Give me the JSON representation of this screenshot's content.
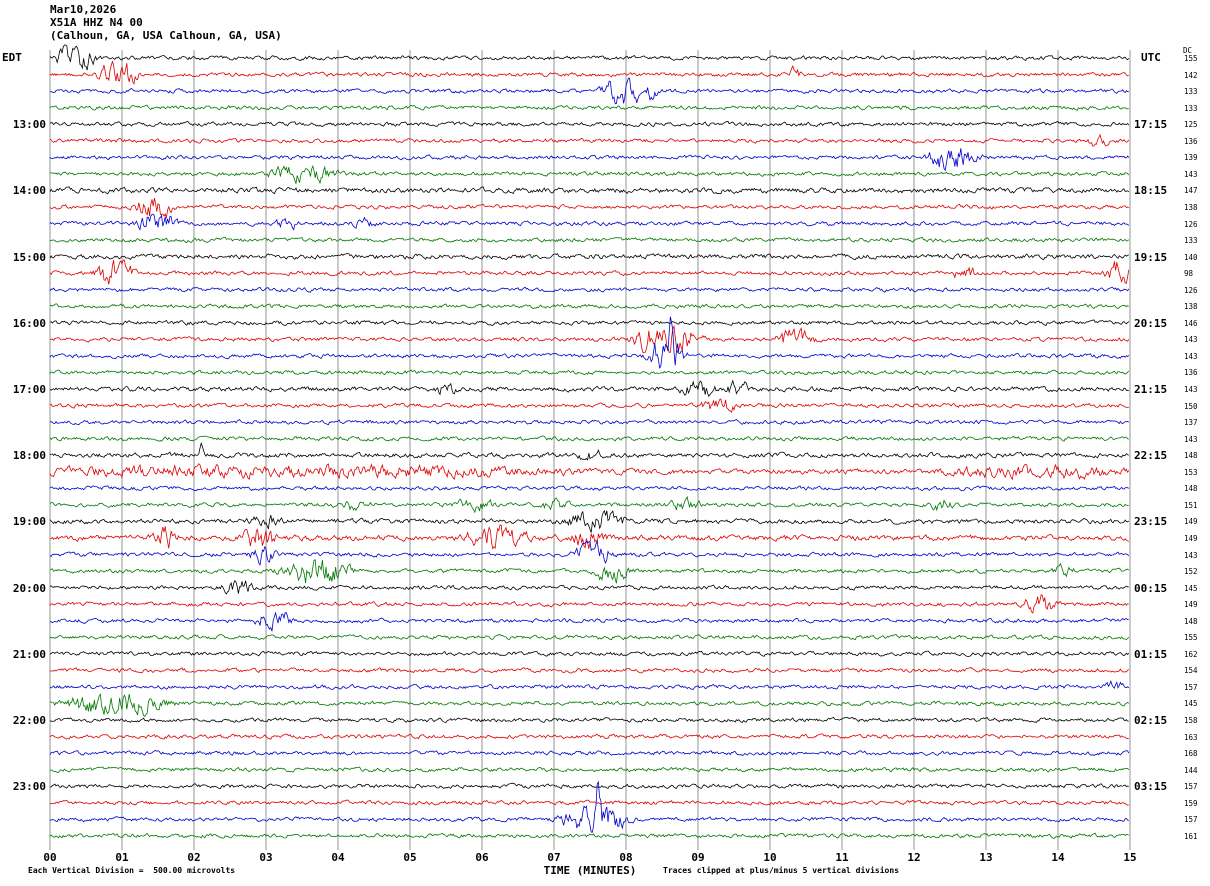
{
  "header": {
    "date": "Mar10,2026",
    "station": "X51A HHZ N4 00",
    "location": "(Calhoun, GA, USA Calhoun, GA, USA)",
    "left_tz": "EDT",
    "right_tz": "UTC",
    "dc_label": "DC"
  },
  "footer": {
    "scale": "Each Vertical Division =  500.00 microvolts",
    "clip_note": "Traces clipped at plus/minus 5 vertical divisions"
  },
  "chart_data": {
    "type": "line",
    "subtype": "seismogram-helicorder",
    "xlabel": "TIME (MINUTES)",
    "x_range": [
      0,
      15
    ],
    "minutes_per_line": 15,
    "lines": 48,
    "x_ticks": [
      "00",
      "01",
      "02",
      "03",
      "04",
      "05",
      "06",
      "07",
      "08",
      "09",
      "10",
      "11",
      "12",
      "13",
      "14",
      "15"
    ],
    "trace_colors_cycle": [
      "#000000",
      "#dd0000",
      "#0000cc",
      "#007700"
    ],
    "grid_color": "#666666",
    "left_labels": [
      {
        "row": 4,
        "label": "13:00"
      },
      {
        "row": 8,
        "label": "14:00"
      },
      {
        "row": 12,
        "label": "15:00"
      },
      {
        "row": 16,
        "label": "16:00"
      },
      {
        "row": 20,
        "label": "17:00"
      },
      {
        "row": 24,
        "label": "18:00"
      },
      {
        "row": 28,
        "label": "19:00"
      },
      {
        "row": 32,
        "label": "20:00"
      },
      {
        "row": 36,
        "label": "21:00"
      },
      {
        "row": 40,
        "label": "22:00"
      },
      {
        "row": 44,
        "label": "23:00"
      }
    ],
    "right_labels": [
      {
        "row": 4,
        "label": "17:15"
      },
      {
        "row": 8,
        "label": "18:15"
      },
      {
        "row": 12,
        "label": "19:15"
      },
      {
        "row": 16,
        "label": "20:15"
      },
      {
        "row": 20,
        "label": "21:15"
      },
      {
        "row": 24,
        "label": "22:15"
      },
      {
        "row": 28,
        "label": "23:15"
      },
      {
        "row": 32,
        "label": "00:15"
      },
      {
        "row": 36,
        "label": "01:15"
      },
      {
        "row": 40,
        "label": "02:15"
      },
      {
        "row": 44,
        "label": "03:15"
      }
    ],
    "dc_values": [
      155,
      142,
      133,
      133,
      125,
      136,
      139,
      143,
      147,
      138,
      126,
      133,
      140,
      98,
      126,
      138,
      146,
      143,
      143,
      136,
      143,
      150,
      137,
      143,
      148,
      153,
      148,
      151,
      149,
      149,
      143,
      152,
      145,
      149,
      148,
      155,
      162,
      154,
      157,
      145,
      158,
      163,
      168,
      144,
      157,
      159,
      157,
      161
    ],
    "noise_default": 1.5,
    "noise_overrides": {
      "8": 2.0,
      "12": 1.8,
      "20": 1.8,
      "24": 1.8,
      "25": 1.9,
      "28": 1.8,
      "29": 2.1
    },
    "events": [
      {
        "row": 0,
        "t": 0.35,
        "amp": 9,
        "dur": 0.5
      },
      {
        "row": 1,
        "t": 0.95,
        "amp": 8,
        "dur": 0.55
      },
      {
        "row": 1,
        "t": 10.35,
        "amp": 4,
        "dur": 0.15
      },
      {
        "row": 2,
        "t": 8.05,
        "amp": 9,
        "dur": 0.7
      },
      {
        "row": 5,
        "t": 14.55,
        "amp": 3,
        "dur": 0.3
      },
      {
        "row": 6,
        "t": 12.55,
        "amp": 9,
        "dur": 0.65
      },
      {
        "row": 7,
        "t": 3.5,
        "amp": 5,
        "dur": 0.9
      },
      {
        "row": 9,
        "t": 1.45,
        "amp": 8,
        "dur": 0.5
      },
      {
        "row": 10,
        "t": 1.5,
        "amp": 7,
        "dur": 0.55
      },
      {
        "row": 10,
        "t": 3.3,
        "amp": 3,
        "dur": 0.3
      },
      {
        "row": 10,
        "t": 4.35,
        "amp": 3,
        "dur": 0.3
      },
      {
        "row": 13,
        "t": 0.9,
        "amp": 9,
        "dur": 0.5
      },
      {
        "row": 13,
        "t": 12.7,
        "amp": 4,
        "dur": 0.3
      },
      {
        "row": 13,
        "t": 14.85,
        "amp": 8,
        "dur": 0.35
      },
      {
        "row": 17,
        "t": 8.55,
        "amp": 11,
        "dur": 0.9
      },
      {
        "row": 17,
        "t": 10.35,
        "amp": 6,
        "dur": 0.5
      },
      {
        "row": 18,
        "t": 8.55,
        "amp": 11,
        "dur": 0.5
      },
      {
        "row": 18,
        "t": 8.62,
        "amp": 45,
        "dur": 0.05,
        "spike": true
      },
      {
        "row": 20,
        "t": 5.5,
        "amp": 3,
        "dur": 0.3
      },
      {
        "row": 20,
        "t": 9.0,
        "amp": 5,
        "dur": 0.45
      },
      {
        "row": 20,
        "t": 9.55,
        "amp": 4,
        "dur": 0.3
      },
      {
        "row": 21,
        "t": 9.3,
        "amp": 5,
        "dur": 0.45
      },
      {
        "row": 24,
        "t": 2.1,
        "amp": 10,
        "dur": 0.05,
        "spike": true
      },
      {
        "row": 24,
        "t": 7.5,
        "amp": 4,
        "dur": 0.3
      },
      {
        "row": 25,
        "t": 3.45,
        "amp": 3.2,
        "dur": 6.9
      },
      {
        "row": 25,
        "t": 13.75,
        "amp": 3.2,
        "dur": 2.5
      },
      {
        "row": 27,
        "t": 4.2,
        "amp": 3.5,
        "dur": 0.5
      },
      {
        "row": 27,
        "t": 5.9,
        "amp": 3.5,
        "dur": 0.5
      },
      {
        "row": 27,
        "t": 7.0,
        "amp": 3,
        "dur": 0.4
      },
      {
        "row": 27,
        "t": 8.8,
        "amp": 3.5,
        "dur": 0.5
      },
      {
        "row": 27,
        "t": 12.4,
        "amp": 4,
        "dur": 0.3
      },
      {
        "row": 28,
        "t": 3.0,
        "amp": 4,
        "dur": 0.4
      },
      {
        "row": 28,
        "t": 7.6,
        "amp": 6,
        "dur": 0.8
      },
      {
        "row": 29,
        "t": 1.6,
        "amp": 7,
        "dur": 0.35
      },
      {
        "row": 29,
        "t": 2.9,
        "amp": 9,
        "dur": 0.4
      },
      {
        "row": 29,
        "t": 6.2,
        "amp": 8,
        "dur": 0.8
      },
      {
        "row": 29,
        "t": 7.5,
        "amp": 7,
        "dur": 0.45
      },
      {
        "row": 30,
        "t": 2.95,
        "amp": 6,
        "dur": 0.35
      },
      {
        "row": 30,
        "t": 7.55,
        "amp": 7,
        "dur": 0.5
      },
      {
        "row": 31,
        "t": 3.7,
        "amp": 9,
        "dur": 0.9
      },
      {
        "row": 31,
        "t": 7.8,
        "amp": 7,
        "dur": 0.45
      },
      {
        "row": 31,
        "t": 14.1,
        "amp": 4,
        "dur": 0.3
      },
      {
        "row": 32,
        "t": 2.6,
        "amp": 5,
        "dur": 0.4
      },
      {
        "row": 33,
        "t": 13.75,
        "amp": 6,
        "dur": 0.45
      },
      {
        "row": 34,
        "t": 3.1,
        "amp": 7,
        "dur": 0.45
      },
      {
        "row": 38,
        "t": 14.8,
        "amp": 3,
        "dur": 0.3
      },
      {
        "row": 39,
        "t": 0.9,
        "amp": 8,
        "dur": 1.3
      },
      {
        "row": 46,
        "t": 7.55,
        "amp": 9,
        "dur": 0.9
      },
      {
        "row": 46,
        "t": 7.62,
        "amp": 45,
        "dur": 0.05,
        "spike": true
      }
    ]
  }
}
